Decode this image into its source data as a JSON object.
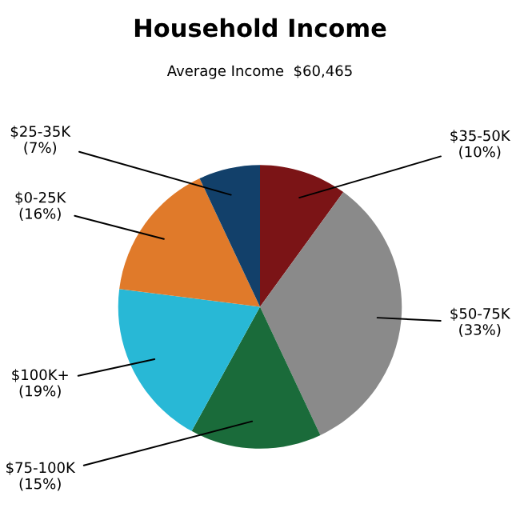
{
  "chart_data": {
    "type": "pie",
    "title": "Household Income",
    "subtitle": "Average Income  $60,465",
    "categories": [
      "$35-50K",
      "$50-75K",
      "$75-100K",
      "$100K+",
      "$0-25K",
      "$25-35K"
    ],
    "values": [
      10,
      33,
      15,
      19,
      16,
      7
    ],
    "value_labels": [
      "(10%)",
      "(33%)",
      "(15%)",
      "(19%)",
      "(16%)",
      "(7%)"
    ],
    "colors": [
      "#7b1416",
      "#8a8a8a",
      "#1a6b3a",
      "#28b8d6",
      "#e07a2a",
      "#12406a"
    ]
  }
}
